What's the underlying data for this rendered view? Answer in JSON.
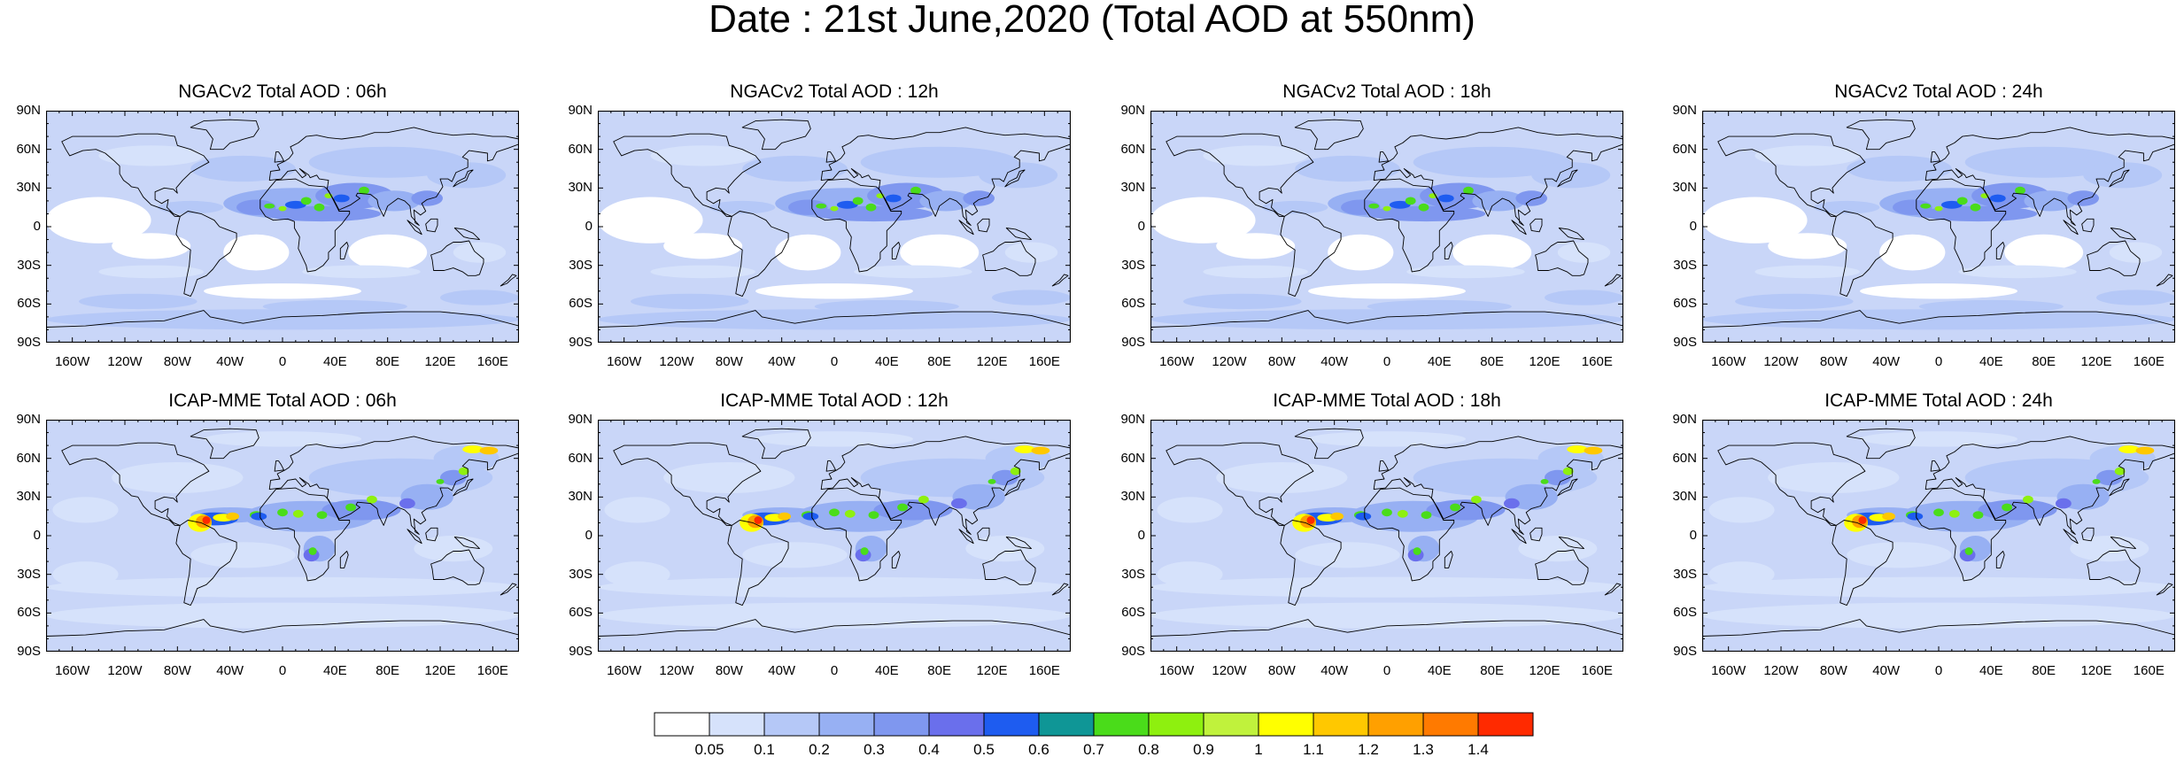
{
  "title": "Date : 21st June,2020 (Total AOD at 550nm)",
  "panels": [
    {
      "title": "NGACv2 Total AOD : 06h",
      "model": "ngac"
    },
    {
      "title": "NGACv2 Total AOD : 12h",
      "model": "ngac"
    },
    {
      "title": "NGACv2 Total AOD : 18h",
      "model": "ngac"
    },
    {
      "title": "NGACv2 Total AOD : 24h",
      "model": "ngac"
    },
    {
      "title": "ICAP-MME Total AOD : 06h",
      "model": "icap"
    },
    {
      "title": "ICAP-MME Total AOD : 12h",
      "model": "icap"
    },
    {
      "title": "ICAP-MME Total AOD : 18h",
      "model": "icap"
    },
    {
      "title": "ICAP-MME Total AOD : 24h",
      "model": "icap"
    }
  ],
  "lat_labels": [
    "90N",
    "60N",
    "30N",
    "0",
    "30S",
    "60S",
    "90S"
  ],
  "lon_labels": [
    "160W",
    "120W",
    "80W",
    "40W",
    "0",
    "40E",
    "80E",
    "120E",
    "160E"
  ],
  "colorbar": {
    "levels": [
      "0.05",
      "0.1",
      "0.2",
      "0.3",
      "0.4",
      "0.5",
      "0.6",
      "0.7",
      "0.8",
      "0.9",
      "1",
      "1.1",
      "1.2",
      "1.3",
      "1.4"
    ],
    "colors": [
      "#ffffff",
      "#d6e2fb",
      "#b5c8f7",
      "#97b0f3",
      "#7f97ef",
      "#6a6fec",
      "#1e5cf0",
      "#0f9696",
      "#4adc1a",
      "#8ef00f",
      "#c0f23c",
      "#ffff00",
      "#ffc800",
      "#ffa000",
      "#ff7a00",
      "#ff2a00"
    ]
  },
  "background_color": "#c9d6f8"
}
